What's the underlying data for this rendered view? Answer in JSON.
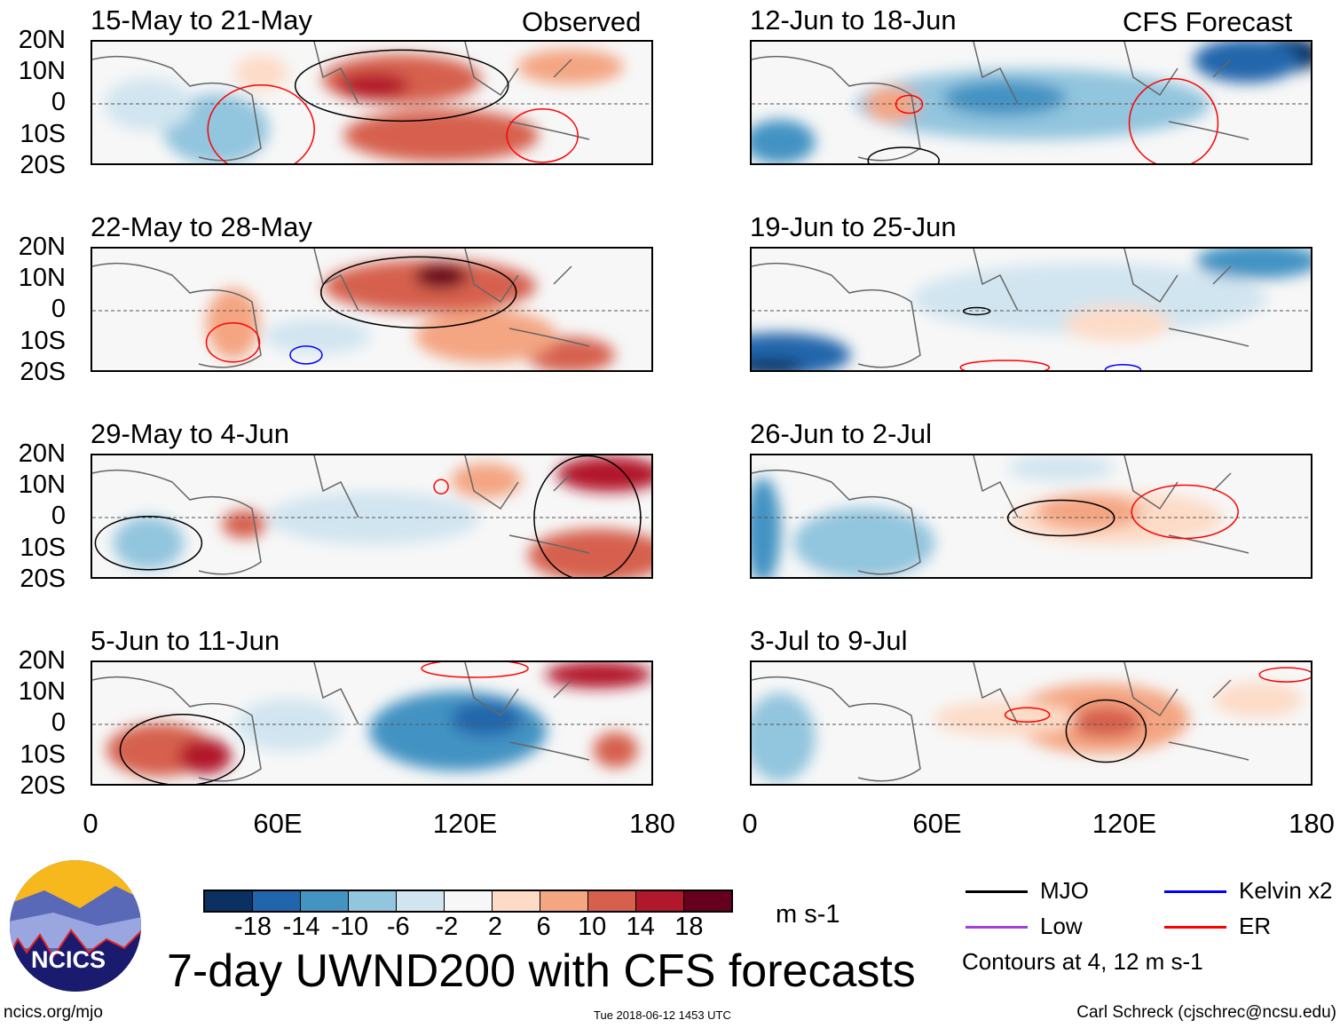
{
  "headers": {
    "left": "Observed",
    "right": "CFS Forecast"
  },
  "panels": [
    {
      "title": "15-May to 21-May",
      "side": "left"
    },
    {
      "title": "22-May to 28-May",
      "side": "left"
    },
    {
      "title": "29-May to 4-Jun",
      "side": "left"
    },
    {
      "title": "5-Jun to 11-Jun",
      "side": "left"
    },
    {
      "title": "12-Jun to 18-Jun",
      "side": "right"
    },
    {
      "title": "19-Jun to 25-Jun",
      "side": "right"
    },
    {
      "title": "26-Jun to 2-Jul",
      "side": "right"
    },
    {
      "title": "3-Jul to 9-Jul",
      "side": "right"
    }
  ],
  "lat_labels": [
    "20N",
    "10N",
    "0",
    "10S",
    "20S"
  ],
  "lon_labels": [
    "0",
    "60E",
    "120E",
    "180"
  ],
  "colorbar": {
    "colors": [
      "#0a3162",
      "#2166ac",
      "#4393c3",
      "#92c5de",
      "#d1e5f0",
      "#f7f7f7",
      "#fddbc7",
      "#f4a582",
      "#d6604d",
      "#b2182b",
      "#67001f"
    ],
    "ticks": [
      "-18",
      "-14",
      "-10",
      "-6",
      "-2",
      "2",
      "6",
      "10",
      "14",
      "18"
    ],
    "units": "m s-1"
  },
  "title": "7-day UWND200 with CFS forecasts",
  "legend": [
    {
      "label": "MJO",
      "color": "#000000"
    },
    {
      "label": "Kelvin x2",
      "color": "#0000ff"
    },
    {
      "label": "Low",
      "color": "#a040e0"
    },
    {
      "label": "ER",
      "color": "#ff0000"
    }
  ],
  "contours_note": "Contours at 4, 12 m s-1",
  "logo_text": "NCICS",
  "footer": {
    "url": "ncics.org/mjo",
    "timestamp": "Tue 2018-06-12 1453 UTC",
    "credit": "Carl Schreck (cjschrec@ncsu.edu)"
  }
}
